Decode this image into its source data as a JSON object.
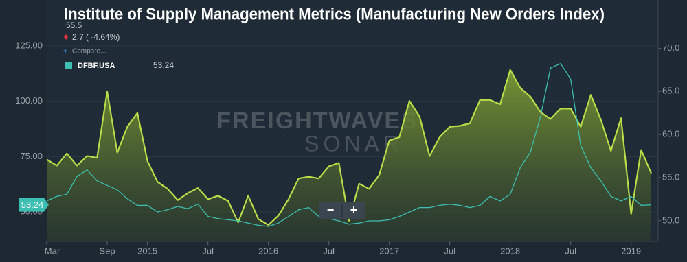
{
  "chart_data": {
    "type": "line",
    "title": "Institute of Supply Management Metrics (Manufacturing New Orders Index)",
    "x": [
      "2014-03",
      "2014-04",
      "2014-05",
      "2014-06",
      "2014-07",
      "2014-08",
      "2014-09",
      "2014-10",
      "2014-11",
      "2014-12",
      "2015-01",
      "2015-02",
      "2015-03",
      "2015-04",
      "2015-05",
      "2015-06",
      "2015-07",
      "2015-08",
      "2015-09",
      "2015-10",
      "2015-11",
      "2015-12",
      "2016-01",
      "2016-02",
      "2016-03",
      "2016-04",
      "2016-05",
      "2016-06",
      "2016-07",
      "2016-08",
      "2016-09",
      "2016-10",
      "2016-11",
      "2016-12",
      "2017-01",
      "2017-02",
      "2017-03",
      "2017-04",
      "2017-05",
      "2017-06",
      "2017-07",
      "2017-08",
      "2017-09",
      "2017-10",
      "2017-11",
      "2017-12",
      "2018-01",
      "2018-02",
      "2018-03",
      "2018-04",
      "2018-05",
      "2018-06",
      "2018-07",
      "2018-08",
      "2018-09",
      "2018-10",
      "2018-11",
      "2018-12",
      "2019-01",
      "2019-02",
      "2019-03"
    ],
    "xlim": [
      "2014-03",
      "2019-03"
    ],
    "xticks": [
      {
        "value": "2014-03",
        "label": "Mar"
      },
      {
        "value": "2014-09",
        "label": "Sep"
      },
      {
        "value": "2015-01",
        "label": "2015"
      },
      {
        "value": "2015-07",
        "label": "Jul"
      },
      {
        "value": "2016-01",
        "label": "2016"
      },
      {
        "value": "2016-07",
        "label": "Jul"
      },
      {
        "value": "2017-01",
        "label": "2017"
      },
      {
        "value": "2017-07",
        "label": "Jul"
      },
      {
        "value": "2018-01",
        "label": "2018"
      },
      {
        "value": "2018-07",
        "label": "Jul"
      },
      {
        "value": "2019-01",
        "label": "2019"
      }
    ],
    "ylim": [
      36.7,
      145.7
    ],
    "yticks": [
      {
        "value": 50,
        "label": "50.00"
      },
      {
        "value": 75,
        "label": "75.00"
      },
      {
        "value": 100,
        "label": "100.00"
      },
      {
        "value": 125,
        "label": "125.00"
      }
    ],
    "y2lim": [
      47.6,
      75.6
    ],
    "y2ticks": [
      {
        "value": 50,
        "label": "50.0"
      },
      {
        "value": 55,
        "label": "55.0"
      },
      {
        "value": 60,
        "label": "60.0"
      },
      {
        "value": 65,
        "label": "65.0"
      },
      {
        "value": 70,
        "label": "70.0"
      }
    ],
    "grid": true,
    "series": [
      {
        "color": "#b9dd48",
        "axis": "y2",
        "area": true,
        "values": [
          57.1,
          56.4,
          57.8,
          56.4,
          57.5,
          57.3,
          65.0,
          57.9,
          60.9,
          62.5,
          56.9,
          54.5,
          53.7,
          52.4,
          53.2,
          53.8,
          52.5,
          52.9,
          52.3,
          49.8,
          52.9,
          50.2,
          49.5,
          50.6,
          52.5,
          54.9,
          55.1,
          54.9,
          56.3,
          56.7,
          50.0,
          54.3,
          53.7,
          55.3,
          59.3,
          59.7,
          63.9,
          62.1,
          57.5,
          59.7,
          60.9,
          61.0,
          61.3,
          64.0,
          64.0,
          63.5,
          67.5,
          65.4,
          64.4,
          62.6,
          61.8,
          63.0,
          63.0,
          60.9,
          64.6,
          61.7,
          58.1,
          61.9,
          50.8,
          58.2,
          55.5
        ]
      },
      {
        "name": "DFBF.USA",
        "color": "#3cbfb2",
        "values": [
          55,
          57,
          58,
          66,
          69,
          64,
          62,
          60,
          56,
          53,
          53,
          50,
          51,
          52.5,
          51.5,
          53.5,
          48,
          47,
          46.5,
          46,
          45,
          44,
          43.5,
          45,
          48,
          51,
          52,
          48,
          47,
          46,
          44.5,
          45,
          46,
          46,
          46.5,
          48,
          50,
          52,
          52,
          53,
          53.5,
          53,
          52,
          53,
          57,
          55,
          58,
          70,
          77,
          93,
          115,
          117,
          110,
          80,
          70,
          64,
          57,
          55,
          57,
          53,
          53.24
        ]
      }
    ],
    "legend": {
      "value": "55.5",
      "change": "2.7 ( -4.64%)",
      "compare": "Compare...",
      "series_value": "53.24"
    },
    "current_value_label": "53.24",
    "watermark": [
      "FREIGHTWAVES",
      "SONAR"
    ],
    "zoom_buttons": [
      "−",
      "+"
    ]
  }
}
